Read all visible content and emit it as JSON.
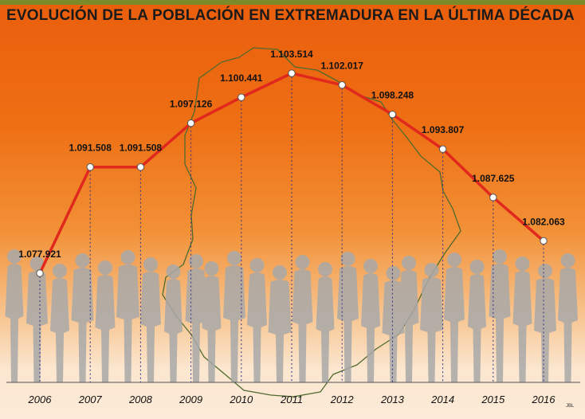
{
  "chart_data": {
    "type": "line",
    "title": "EVOLUCIÓN DE LA POBLACIÓN EN EXTREMADURA EN LA ÚLTIMA DÉCADA",
    "x": [
      "2006",
      "2007",
      "2008",
      "2009",
      "2010",
      "2011",
      "2012",
      "2013",
      "2014",
      "2015",
      "2016"
    ],
    "values": [
      1077921,
      1091508,
      1091508,
      1097126,
      1100441,
      1103514,
      1102017,
      1098248,
      1093807,
      1087625,
      1082063
    ],
    "labels": [
      "1.077.921",
      "1.091.508",
      "1.091.508",
      "1.097.126",
      "1.100.441",
      "1.103.514",
      "1.102.017",
      "1.098.248",
      "1.093.807",
      "1.087.625",
      "1.082.063"
    ],
    "ylim": [
      1074000,
      1105500
    ],
    "line_color": "#e0281c",
    "marker_fill": "#ffffff",
    "background_color": "#ee6f14",
    "credit": "JBL"
  }
}
